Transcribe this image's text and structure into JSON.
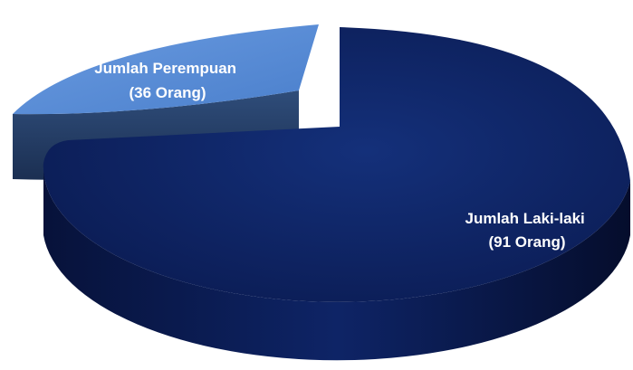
{
  "chart_data": {
    "type": "pie",
    "style": "3d",
    "slices": [
      {
        "label_line1": "Jumlah Perempuan",
        "label_line2": "(36 Orang)",
        "value": 36,
        "color": "#5b8fd6",
        "exploded": true
      },
      {
        "label_line1": "Jumlah Laki-laki",
        "label_line2": "(91 Orang)",
        "value": 91,
        "color": "#0c1f5c",
        "exploded": false
      }
    ]
  }
}
